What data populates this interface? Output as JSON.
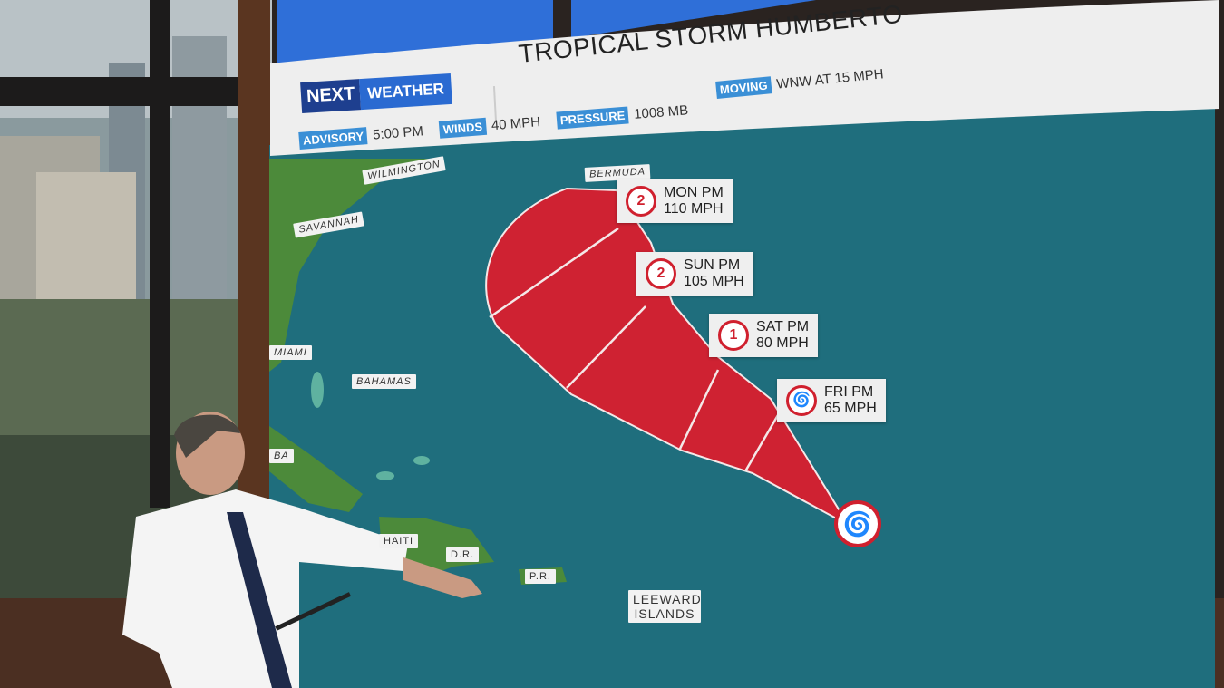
{
  "header": {
    "brand": {
      "next": "NEXT",
      "weather": "WEATHER"
    },
    "title": "TROPICAL STORM HUMBERTO",
    "stats": [
      {
        "label": "ADVISORY",
        "value": "5:00 PM"
      },
      {
        "label": "WINDS",
        "value": "40 MPH"
      },
      {
        "label": "PRESSURE",
        "value": "1008 MB"
      },
      {
        "label": "MOVING",
        "value": "WNW AT 15 MPH"
      }
    ]
  },
  "map": {
    "places": [
      "WILMINGTON",
      "SAVANNAH",
      "MIAMI",
      "BAHAMAS",
      "BA",
      "HAITI",
      "D.R.",
      "P.R.",
      "LEEWARD ISLANDS",
      "BERMUDA"
    ],
    "forecast": [
      {
        "time": "MON PM",
        "wind": "110 MPH",
        "category": "2"
      },
      {
        "time": "SUN PM",
        "wind": "105 MPH",
        "category": "2"
      },
      {
        "time": "SAT PM",
        "wind": "80 MPH",
        "category": "1"
      },
      {
        "time": "FRI PM",
        "wind": "65 MPH",
        "category": ""
      }
    ],
    "cone_color": "#cf2232",
    "ocean_color": "#1f6e7d"
  }
}
